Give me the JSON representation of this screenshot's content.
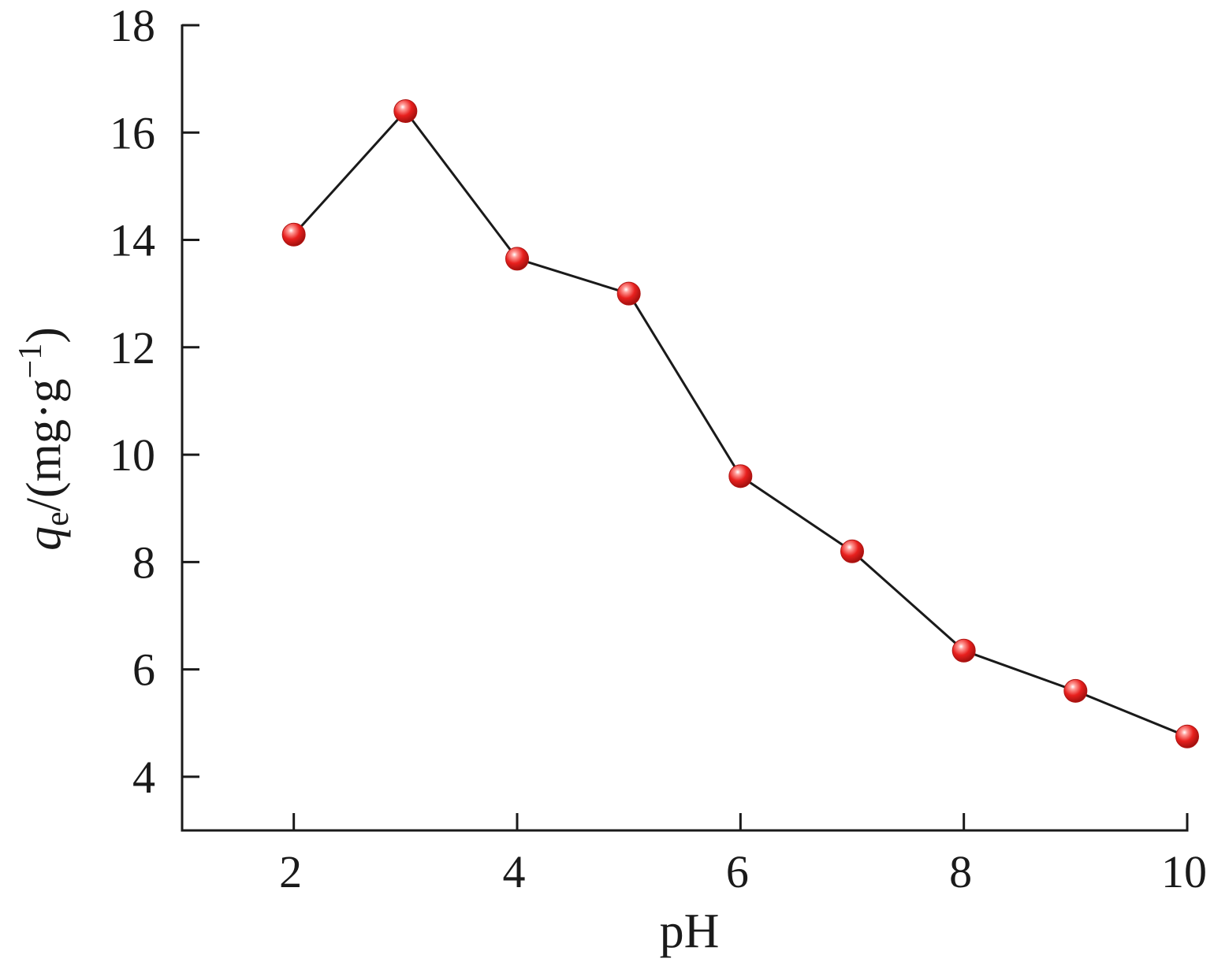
{
  "chart_data": {
    "type": "line",
    "xlabel": "pH",
    "ylabel": {
      "var": "q",
      "sub": "e",
      "unit_open": "/(mg·g",
      "sup": "−1",
      "unit_close": ")"
    },
    "xlim": [
      1,
      10
    ],
    "ylim": [
      3,
      18
    ],
    "xticks": [
      2,
      4,
      6,
      8,
      10
    ],
    "yticks": [
      4,
      6,
      8,
      10,
      12,
      14,
      16,
      18
    ],
    "grid": false,
    "marker_color": "#e8201e",
    "line_color": "#1a1a1a",
    "series": [
      {
        "x": [
          2,
          3,
          4,
          5,
          6,
          7,
          8,
          9,
          10
        ],
        "y": [
          14.1,
          16.4,
          13.65,
          13.0,
          9.6,
          8.2,
          6.35,
          5.6,
          4.75
        ]
      }
    ]
  }
}
